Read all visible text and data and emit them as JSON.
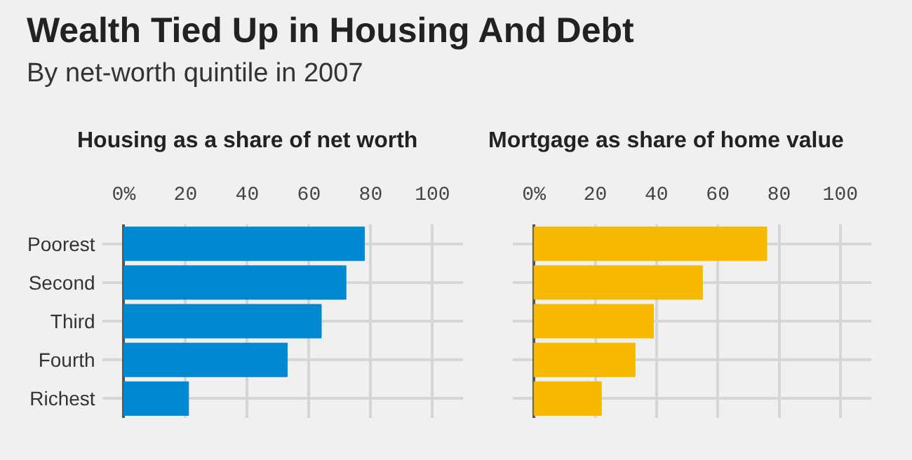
{
  "chart_data": [
    {
      "type": "bar",
      "orientation": "horizontal",
      "title": "Housing as a share of net worth",
      "annotations": [
        "Wealth Tied Up in Housing And Debt",
        "By net-worth quintile in 2007"
      ],
      "categories": [
        "Poorest",
        "Second",
        "Third",
        "Fourth",
        "Richest"
      ],
      "values": [
        78,
        72,
        64,
        53,
        21
      ],
      "color": "#0088d1",
      "xlim": [
        -7,
        110
      ],
      "xticks": [
        {
          "value": 0,
          "label": "0%"
        },
        20,
        40,
        60,
        80,
        100
      ],
      "grid": true
    },
    {
      "type": "bar",
      "orientation": "horizontal",
      "title": "Mortgage as share of home value",
      "categories": [
        null,
        null,
        null,
        null,
        null
      ],
      "values": [
        76,
        55,
        39,
        33,
        22
      ],
      "color": "#f6b900",
      "xlim": [
        -7,
        110
      ],
      "xticks": [
        {
          "value": 0,
          "label": "0%"
        },
        20,
        40,
        60,
        80,
        100
      ],
      "grid": true,
      "tick_labels": "x"
    }
  ]
}
